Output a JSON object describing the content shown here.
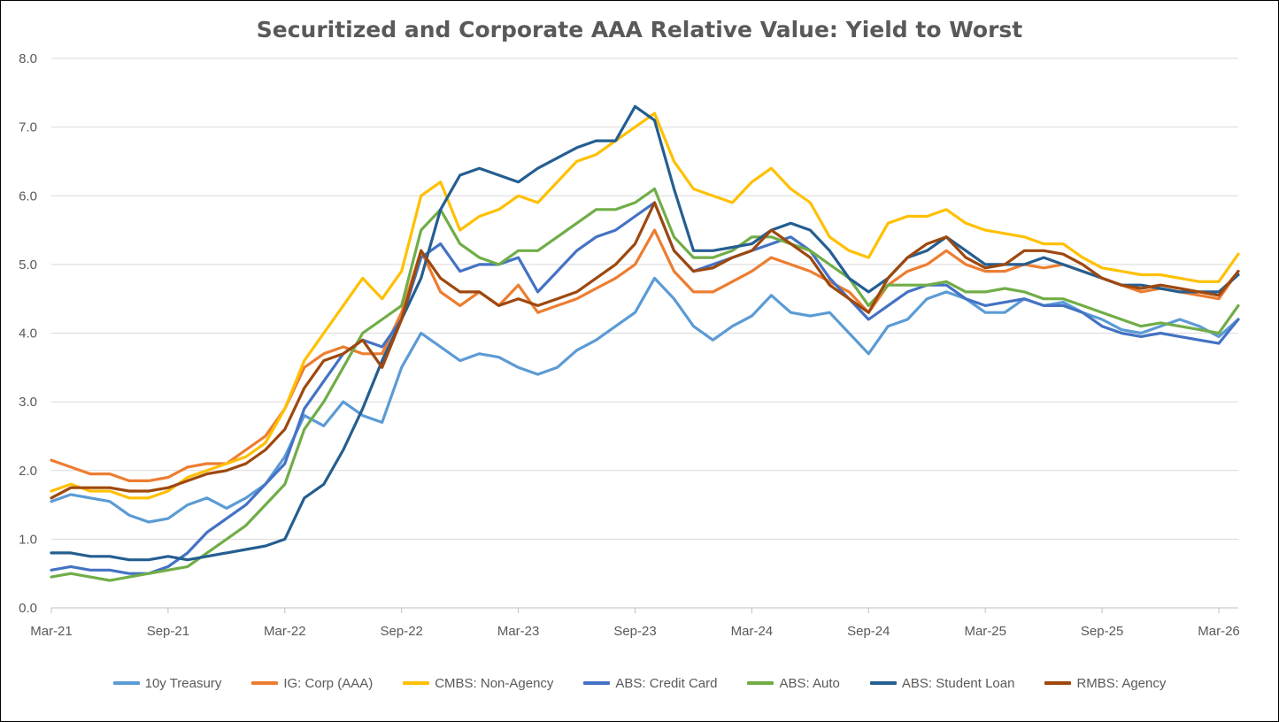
{
  "chart_data": {
    "type": "line",
    "title": "Securitized and Corporate AAA Relative Value: Yield to Worst",
    "xlabel": "",
    "ylabel": "",
    "ylim": [
      0,
      8
    ],
    "yticks": [
      "0.0",
      "1.0",
      "2.0",
      "3.0",
      "4.0",
      "5.0",
      "6.0",
      "7.0",
      "8.0"
    ],
    "x_ticks": [
      "Mar-21",
      "Sep-21",
      "Mar-22",
      "Sep-22",
      "Mar-23",
      "Sep-23",
      "Mar-24",
      "Sep-24",
      "Mar-25",
      "Sep-25",
      "Mar-26"
    ],
    "x_tick_positions": [
      0,
      6,
      12,
      18,
      24,
      30,
      36,
      42,
      48,
      54,
      60
    ],
    "x_range": [
      0,
      61
    ],
    "grid": true,
    "legend_position": "bottom",
    "x": [
      0,
      1,
      2,
      3,
      4,
      5,
      6,
      7,
      8,
      9,
      10,
      11,
      12,
      13,
      14,
      15,
      16,
      17,
      18,
      19,
      20,
      21,
      22,
      23,
      24,
      25,
      26,
      27,
      28,
      29,
      30,
      31,
      32,
      33,
      34,
      35,
      36,
      37,
      38,
      39,
      40,
      41,
      42,
      43,
      44,
      45,
      46,
      47,
      48,
      49,
      50,
      51,
      52,
      53,
      54,
      55,
      56,
      57,
      58,
      59,
      60,
      61
    ],
    "series": [
      {
        "name": "10y Treasury",
        "color": "#5B9BD5",
        "values": [
          1.55,
          1.65,
          1.6,
          1.55,
          1.35,
          1.25,
          1.3,
          1.5,
          1.6,
          1.45,
          1.6,
          1.8,
          2.2,
          2.8,
          2.65,
          3.0,
          2.8,
          2.7,
          3.5,
          4.0,
          3.8,
          3.6,
          3.7,
          3.65,
          3.5,
          3.4,
          3.5,
          3.75,
          3.9,
          4.1,
          4.3,
          4.8,
          4.5,
          4.1,
          3.9,
          4.1,
          4.25,
          4.55,
          4.3,
          4.25,
          4.3,
          4.0,
          3.7,
          4.1,
          4.2,
          4.5,
          4.6,
          4.5,
          4.3,
          4.3,
          4.5,
          4.4,
          4.45,
          4.3,
          4.2,
          4.05,
          4.0,
          4.1,
          4.2,
          4.1,
          3.95,
          4.2
        ]
      },
      {
        "name": "IG: Corp (AAA)",
        "color": "#ED7D31",
        "values": [
          2.15,
          2.05,
          1.95,
          1.95,
          1.85,
          1.85,
          1.9,
          2.05,
          2.1,
          2.1,
          2.3,
          2.5,
          2.9,
          3.5,
          3.7,
          3.8,
          3.7,
          3.7,
          4.3,
          5.2,
          4.6,
          4.4,
          4.6,
          4.4,
          4.7,
          4.3,
          4.4,
          4.5,
          4.65,
          4.8,
          5.0,
          5.5,
          4.9,
          4.6,
          4.6,
          4.75,
          4.9,
          5.1,
          5.0,
          4.9,
          4.75,
          4.6,
          4.3,
          4.7,
          4.9,
          5.0,
          5.2,
          5.0,
          4.9,
          4.9,
          5.0,
          4.95,
          5.0,
          4.9,
          4.8,
          4.7,
          4.6,
          4.65,
          4.6,
          4.55,
          4.5,
          4.9
        ]
      },
      {
        "name": "CMBS: Non-Agency",
        "color": "#FFC000",
        "values": [
          1.7,
          1.8,
          1.7,
          1.7,
          1.6,
          1.6,
          1.7,
          1.9,
          2.0,
          2.1,
          2.2,
          2.4,
          2.9,
          3.6,
          4.0,
          4.4,
          4.8,
          4.5,
          4.9,
          6.0,
          6.2,
          5.5,
          5.7,
          5.8,
          6.0,
          5.9,
          6.2,
          6.5,
          6.6,
          6.8,
          7.0,
          7.2,
          6.5,
          6.1,
          6.0,
          5.9,
          6.2,
          6.4,
          6.1,
          5.9,
          5.4,
          5.2,
          5.1,
          5.6,
          5.7,
          5.7,
          5.8,
          5.6,
          5.5,
          5.45,
          5.4,
          5.3,
          5.3,
          5.1,
          4.95,
          4.9,
          4.85,
          4.85,
          4.8,
          4.75,
          4.75,
          5.15
        ]
      },
      {
        "name": "ABS: Credit Card",
        "color": "#4472C4",
        "values": [
          0.55,
          0.6,
          0.55,
          0.55,
          0.5,
          0.5,
          0.6,
          0.8,
          1.1,
          1.3,
          1.5,
          1.8,
          2.1,
          2.9,
          3.3,
          3.7,
          3.9,
          3.8,
          4.2,
          5.1,
          5.3,
          4.9,
          5.0,
          5.0,
          5.1,
          4.6,
          4.9,
          5.2,
          5.4,
          5.5,
          5.7,
          5.9,
          5.2,
          4.9,
          5.0,
          5.1,
          5.2,
          5.3,
          5.4,
          5.2,
          4.8,
          4.5,
          4.2,
          4.4,
          4.6,
          4.7,
          4.7,
          4.5,
          4.4,
          4.45,
          4.5,
          4.4,
          4.4,
          4.3,
          4.1,
          4.0,
          3.95,
          4.0,
          3.95,
          3.9,
          3.85,
          4.2
        ]
      },
      {
        "name": "ABS: Auto",
        "color": "#70AD47",
        "values": [
          0.45,
          0.5,
          0.45,
          0.4,
          0.45,
          0.5,
          0.55,
          0.6,
          0.8,
          1.0,
          1.2,
          1.5,
          1.8,
          2.6,
          3.0,
          3.5,
          4.0,
          4.2,
          4.4,
          5.5,
          5.8,
          5.3,
          5.1,
          5.0,
          5.2,
          5.2,
          5.4,
          5.6,
          5.8,
          5.8,
          5.9,
          6.1,
          5.4,
          5.1,
          5.1,
          5.2,
          5.4,
          5.4,
          5.3,
          5.2,
          5.0,
          4.8,
          4.4,
          4.7,
          4.7,
          4.7,
          4.75,
          4.6,
          4.6,
          4.65,
          4.6,
          4.5,
          4.5,
          4.4,
          4.3,
          4.2,
          4.1,
          4.15,
          4.1,
          4.05,
          4.0,
          4.4
        ]
      },
      {
        "name": "ABS: Student Loan",
        "color": "#255E91",
        "values": [
          0.8,
          0.8,
          0.75,
          0.75,
          0.7,
          0.7,
          0.75,
          0.7,
          0.75,
          0.8,
          0.85,
          0.9,
          1.0,
          1.6,
          1.8,
          2.3,
          2.9,
          3.6,
          4.2,
          4.8,
          5.8,
          6.3,
          6.4,
          6.3,
          6.2,
          6.4,
          6.55,
          6.7,
          6.8,
          6.8,
          7.3,
          7.1,
          6.1,
          5.2,
          5.2,
          5.25,
          5.3,
          5.5,
          5.6,
          5.5,
          5.2,
          4.8,
          4.6,
          4.8,
          5.1,
          5.2,
          5.4,
          5.2,
          5.0,
          5.0,
          5.0,
          5.1,
          5.0,
          4.9,
          4.8,
          4.7,
          4.7,
          4.65,
          4.6,
          4.6,
          4.6,
          4.85
        ]
      },
      {
        "name": "RMBS: Agency",
        "color": "#9E480E",
        "values": [
          1.6,
          1.75,
          1.75,
          1.75,
          1.7,
          1.7,
          1.75,
          1.85,
          1.95,
          2.0,
          2.1,
          2.3,
          2.6,
          3.2,
          3.6,
          3.7,
          3.9,
          3.5,
          4.2,
          5.2,
          4.8,
          4.6,
          4.6,
          4.4,
          4.5,
          4.4,
          4.5,
          4.6,
          4.8,
          5.0,
          5.3,
          5.9,
          5.2,
          4.9,
          4.95,
          5.1,
          5.2,
          5.5,
          5.3,
          5.1,
          4.7,
          4.5,
          4.3,
          4.8,
          5.1,
          5.3,
          5.4,
          5.1,
          4.95,
          5.0,
          5.2,
          5.2,
          5.15,
          5.0,
          4.8,
          4.7,
          4.65,
          4.7,
          4.65,
          4.6,
          4.55,
          4.9
        ]
      }
    ]
  }
}
